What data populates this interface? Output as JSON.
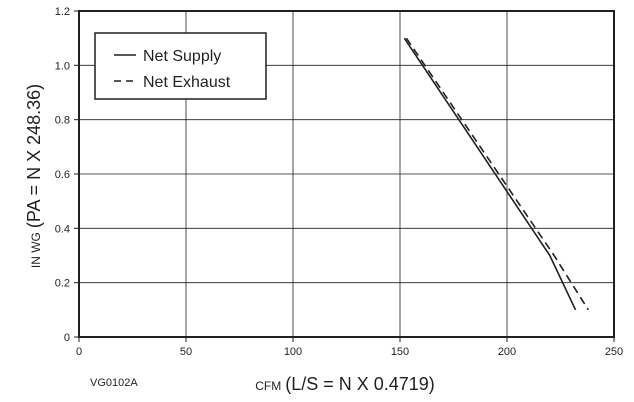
{
  "chart_data": {
    "type": "line",
    "figure_code": "VG0102A",
    "xlabel": {
      "prefix": "CFM",
      "main": "(L/S = N X 0.4719)"
    },
    "ylabel": {
      "prefix": "IN WG",
      "main": "(PA = N X 248.36)"
    },
    "xlim": [
      0,
      250
    ],
    "ylim": [
      0,
      1.2
    ],
    "x_ticks": [
      0,
      50,
      100,
      150,
      200,
      250
    ],
    "x_tick_labels": [
      "0",
      "50",
      "100",
      "150",
      "200",
      "250"
    ],
    "y_ticks": [
      0,
      0.2,
      0.4,
      0.6,
      0.8,
      1.0,
      1.2
    ],
    "y_tick_labels": [
      "0",
      "0.2",
      "0.4",
      "0.6",
      "0.8",
      "1.0",
      "1.2"
    ],
    "grid": true,
    "legend_position": "top-left",
    "series": [
      {
        "name": "Net Supply",
        "style": "solid",
        "x": [
          152,
          220,
          232
        ],
        "y": [
          1.1,
          0.3,
          0.1
        ]
      },
      {
        "name": "Net Exhaust",
        "style": "dashed",
        "x": [
          153,
          222,
          238
        ],
        "y": [
          1.1,
          0.3,
          0.1
        ]
      }
    ]
  }
}
